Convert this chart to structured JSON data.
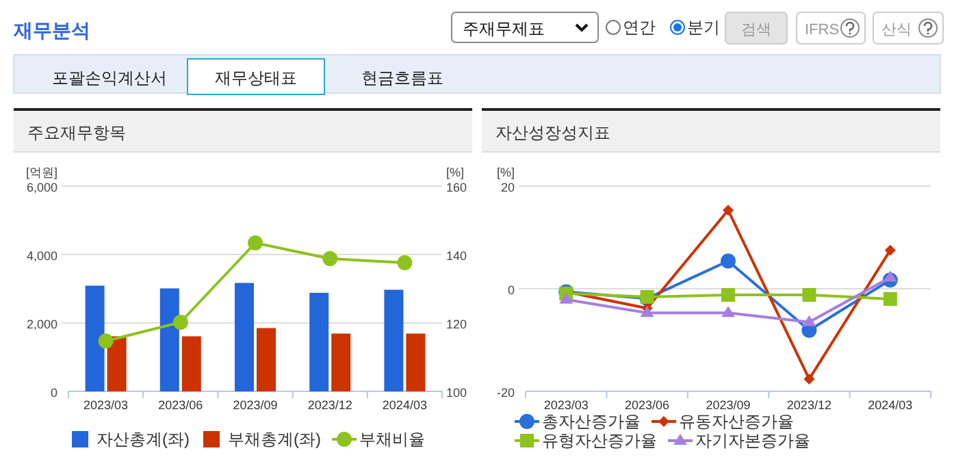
{
  "chart_data": [
    {
      "type": "other",
      "title": "재무분석",
      "annotations": [
        "주재무제표",
        "연간",
        "분기",
        "검색",
        "IFRS",
        "산식",
        "포괄손익계산서",
        "재무상태표",
        "현금흐름표"
      ]
    },
    {
      "type": "bar",
      "title": "주요재무항목",
      "categories": [
        "2023/03",
        "2023/06",
        "2023/09",
        "2023/12",
        "2024/03"
      ],
      "ylabel": "[억원]",
      "y2label": "[%]",
      "ylim": [
        0,
        6000
      ],
      "yticks": [
        0,
        {
          "value": 2000,
          "label": "2,000"
        },
        {
          "value": 4000,
          "label": "4,000"
        },
        {
          "value": 6000,
          "label": "6,000"
        }
      ],
      "y2lim": [
        100,
        160
      ],
      "y2ticks": [
        100,
        120,
        140,
        160
      ],
      "grid": "y",
      "legend": "bottom",
      "series": [
        {
          "name": "자산총계(좌)",
          "color": "#2366d9",
          "values": [
            3090,
            3010,
            3170,
            2880,
            2970
          ]
        },
        {
          "name": "부채총계(좌)",
          "color": "#cc3300",
          "values": [
            1610,
            1610,
            1850,
            1690,
            1690
          ]
        },
        {
          "name": "부채비율",
          "type": "line",
          "axis": "y2",
          "marker": "circle",
          "color": "#8dc21f",
          "values": [
            114.7,
            120.2,
            143.4,
            138.8,
            137.6
          ]
        }
      ]
    },
    {
      "type": "line",
      "title": "자산성장성지표",
      "categories": [
        "2023/03",
        "2023/06",
        "2023/09",
        "2023/12",
        "2024/03"
      ],
      "ylabel": "[%]",
      "ylim": [
        -20,
        20
      ],
      "yticks": [
        -20,
        0,
        20
      ],
      "grid": "y",
      "legend": "bottom",
      "series": [
        {
          "name": "총자산증가율",
          "color": "#2a6fdb",
          "marker": "circle",
          "values": [
            -0.6,
            -1.9,
            5.4,
            -8.1,
            1.7
          ]
        },
        {
          "name": "유동자산증가율",
          "color": "#cc3300",
          "marker": "diamond",
          "values": [
            -0.6,
            -3.8,
            15.3,
            -17.6,
            7.5
          ]
        },
        {
          "name": "유형자산증가율",
          "color": "#8dc21f",
          "marker": "square",
          "values": [
            -0.9,
            -1.6,
            -1.2,
            -1.2,
            -2.0
          ]
        },
        {
          "name": "자기자본증가율",
          "color": "#a57fe0",
          "marker": "triangle",
          "values": [
            -2.1,
            -4.7,
            -4.7,
            -6.5,
            2.2
          ]
        }
      ]
    }
  ]
}
